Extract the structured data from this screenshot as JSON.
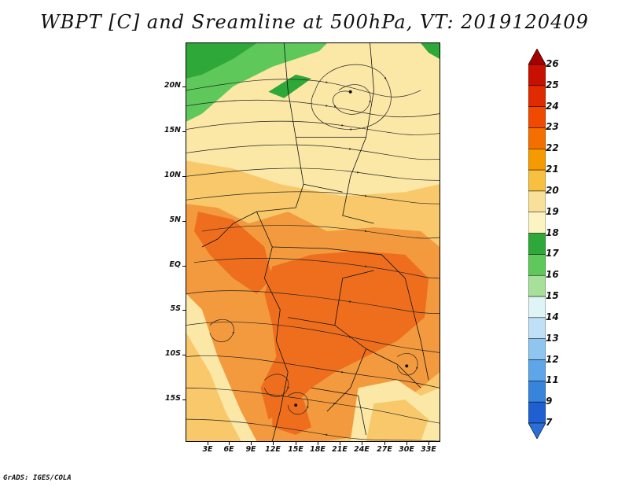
{
  "title": "WBPT [C] and Sreamline at 500hPa, VT: 2019120409",
  "footer": "GrADS: IGES/COLA",
  "axes": {
    "y_ticks": [
      "20N",
      "15N",
      "10N",
      "5N",
      "EQ",
      "5S",
      "10S",
      "15S"
    ],
    "x_ticks": [
      "3E",
      "6E",
      "9E",
      "12E",
      "15E",
      "18E",
      "21E",
      "24E",
      "27E",
      "30E",
      "33E"
    ]
  },
  "colorbar": {
    "labels": [
      "26",
      "25",
      "24",
      "23",
      "22",
      "21",
      "20",
      "19",
      "18",
      "17",
      "16",
      "15",
      "14",
      "13",
      "12",
      "11",
      "9",
      "7"
    ],
    "colors": [
      "#a50000",
      "#c81000",
      "#e02a00",
      "#f04a00",
      "#f56e00",
      "#f59a00",
      "#f8c040",
      "#f8e09a",
      "#fbf4c2",
      "#2fa83a",
      "#5ec85a",
      "#a6e09a",
      "#dff5f5",
      "#bfe0f7",
      "#8fc6f0",
      "#5ea6e8",
      "#3784dd",
      "#1f5fd0",
      "#2a6fd8"
    ]
  },
  "colors": {
    "pale_yellow": "#fbe7a6",
    "light_orange": "#f8c86a",
    "orange": "#f39a3e",
    "dark_orange": "#ee6e1e",
    "green": "#5ec85a",
    "dark_green": "#2fa83a"
  }
}
